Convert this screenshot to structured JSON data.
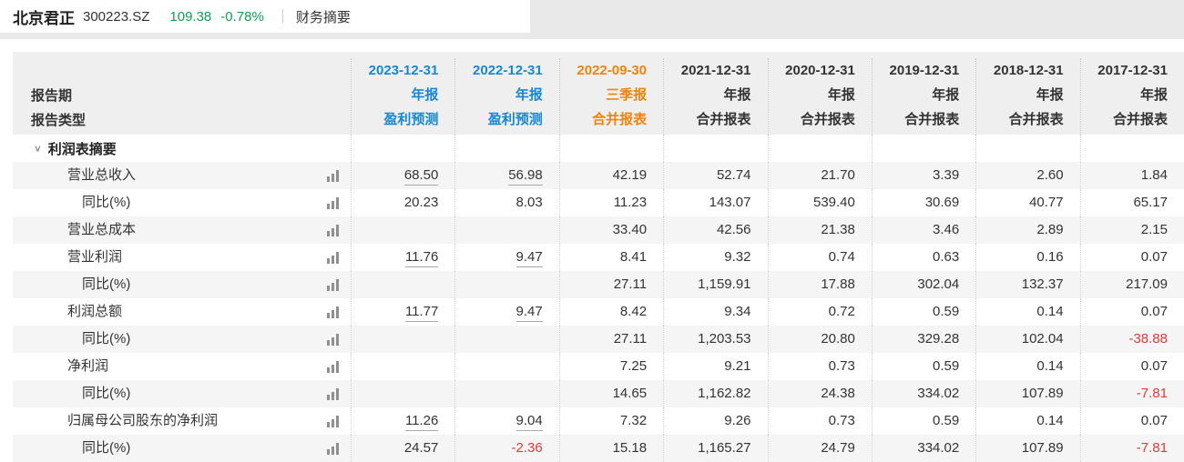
{
  "page_header": {
    "stock_name": "北京君正",
    "stock_code": "300223.SZ",
    "price": "109.38",
    "change_percent": "-0.78%",
    "nav_label": "财务摘要"
  },
  "colors": {
    "price_green": "#0ca150",
    "forecast_blue": "#1787d4",
    "quarter_orange": "#f0830e",
    "negative_red": "#dd3b3a",
    "header_bg": "#efefef",
    "stripe_bg": "#f5f5f5"
  },
  "icons": {
    "chevron_down": "∨",
    "bar_chart": "three-ascending-bars"
  },
  "table": {
    "row_header_labels": [
      "报告期",
      "报告类型"
    ],
    "section_title": "利润表摘要",
    "columns": [
      {
        "date": "2023-12-31",
        "period": "年报",
        "report_type": "盈利预测",
        "color": "#1787d4"
      },
      {
        "date": "2022-12-31",
        "period": "年报",
        "report_type": "盈利预测",
        "color": "#1787d4"
      },
      {
        "date": "2022-09-30",
        "period": "三季报",
        "report_type": "合并报表",
        "color": "#f0830e"
      },
      {
        "date": "2021-12-31",
        "period": "年报",
        "report_type": "合并报表",
        "color": "#333333"
      },
      {
        "date": "2020-12-31",
        "period": "年报",
        "report_type": "合并报表",
        "color": "#333333"
      },
      {
        "date": "2019-12-31",
        "period": "年报",
        "report_type": "合并报表",
        "color": "#333333"
      },
      {
        "date": "2018-12-31",
        "period": "年报",
        "report_type": "合并报表",
        "color": "#333333"
      },
      {
        "date": "2017-12-31",
        "period": "年报",
        "report_type": "合并报表",
        "color": "#333333"
      }
    ],
    "rows": [
      {
        "label": "营业总收入",
        "indent": 1,
        "underline_cols": [
          0,
          1
        ],
        "values": [
          "68.50",
          "56.98",
          "42.19",
          "52.74",
          "21.70",
          "3.39",
          "2.60",
          "1.84"
        ]
      },
      {
        "label": "同比(%)",
        "indent": 2,
        "underline_cols": [],
        "values": [
          "20.23",
          "8.03",
          "11.23",
          "143.07",
          "539.40",
          "30.69",
          "40.77",
          "65.17"
        ]
      },
      {
        "label": "营业总成本",
        "indent": 1,
        "underline_cols": [],
        "values": [
          "",
          "",
          "33.40",
          "42.56",
          "21.38",
          "3.46",
          "2.89",
          "2.15"
        ]
      },
      {
        "label": "营业利润",
        "indent": 1,
        "underline_cols": [
          0,
          1
        ],
        "values": [
          "11.76",
          "9.47",
          "8.41",
          "9.32",
          "0.74",
          "0.63",
          "0.16",
          "0.07"
        ]
      },
      {
        "label": "同比(%)",
        "indent": 2,
        "underline_cols": [],
        "values": [
          "",
          "",
          "27.11",
          "1,159.91",
          "17.88",
          "302.04",
          "132.37",
          "217.09"
        ]
      },
      {
        "label": "利润总额",
        "indent": 1,
        "underline_cols": [
          0,
          1
        ],
        "values": [
          "11.77",
          "9.47",
          "8.42",
          "9.34",
          "0.72",
          "0.59",
          "0.14",
          "0.07"
        ]
      },
      {
        "label": "同比(%)",
        "indent": 2,
        "underline_cols": [],
        "values": [
          "",
          "",
          "27.11",
          "1,203.53",
          "20.80",
          "329.28",
          "102.04",
          "-38.88"
        ]
      },
      {
        "label": "净利润",
        "indent": 1,
        "underline_cols": [],
        "values": [
          "",
          "",
          "7.25",
          "9.21",
          "0.73",
          "0.59",
          "0.14",
          "0.07"
        ]
      },
      {
        "label": "同比(%)",
        "indent": 2,
        "underline_cols": [],
        "values": [
          "",
          "",
          "14.65",
          "1,162.82",
          "24.38",
          "334.02",
          "107.89",
          "-7.81"
        ]
      },
      {
        "label": "归属母公司股东的净利润",
        "indent": 1,
        "underline_cols": [
          0,
          1
        ],
        "values": [
          "11.26",
          "9.04",
          "7.32",
          "9.26",
          "0.73",
          "0.59",
          "0.14",
          "0.07"
        ]
      },
      {
        "label": "同比(%)",
        "indent": 2,
        "underline_cols": [],
        "values": [
          "24.57",
          "-2.36",
          "15.18",
          "1,165.27",
          "24.79",
          "334.02",
          "107.89",
          "-7.81"
        ]
      }
    ]
  }
}
